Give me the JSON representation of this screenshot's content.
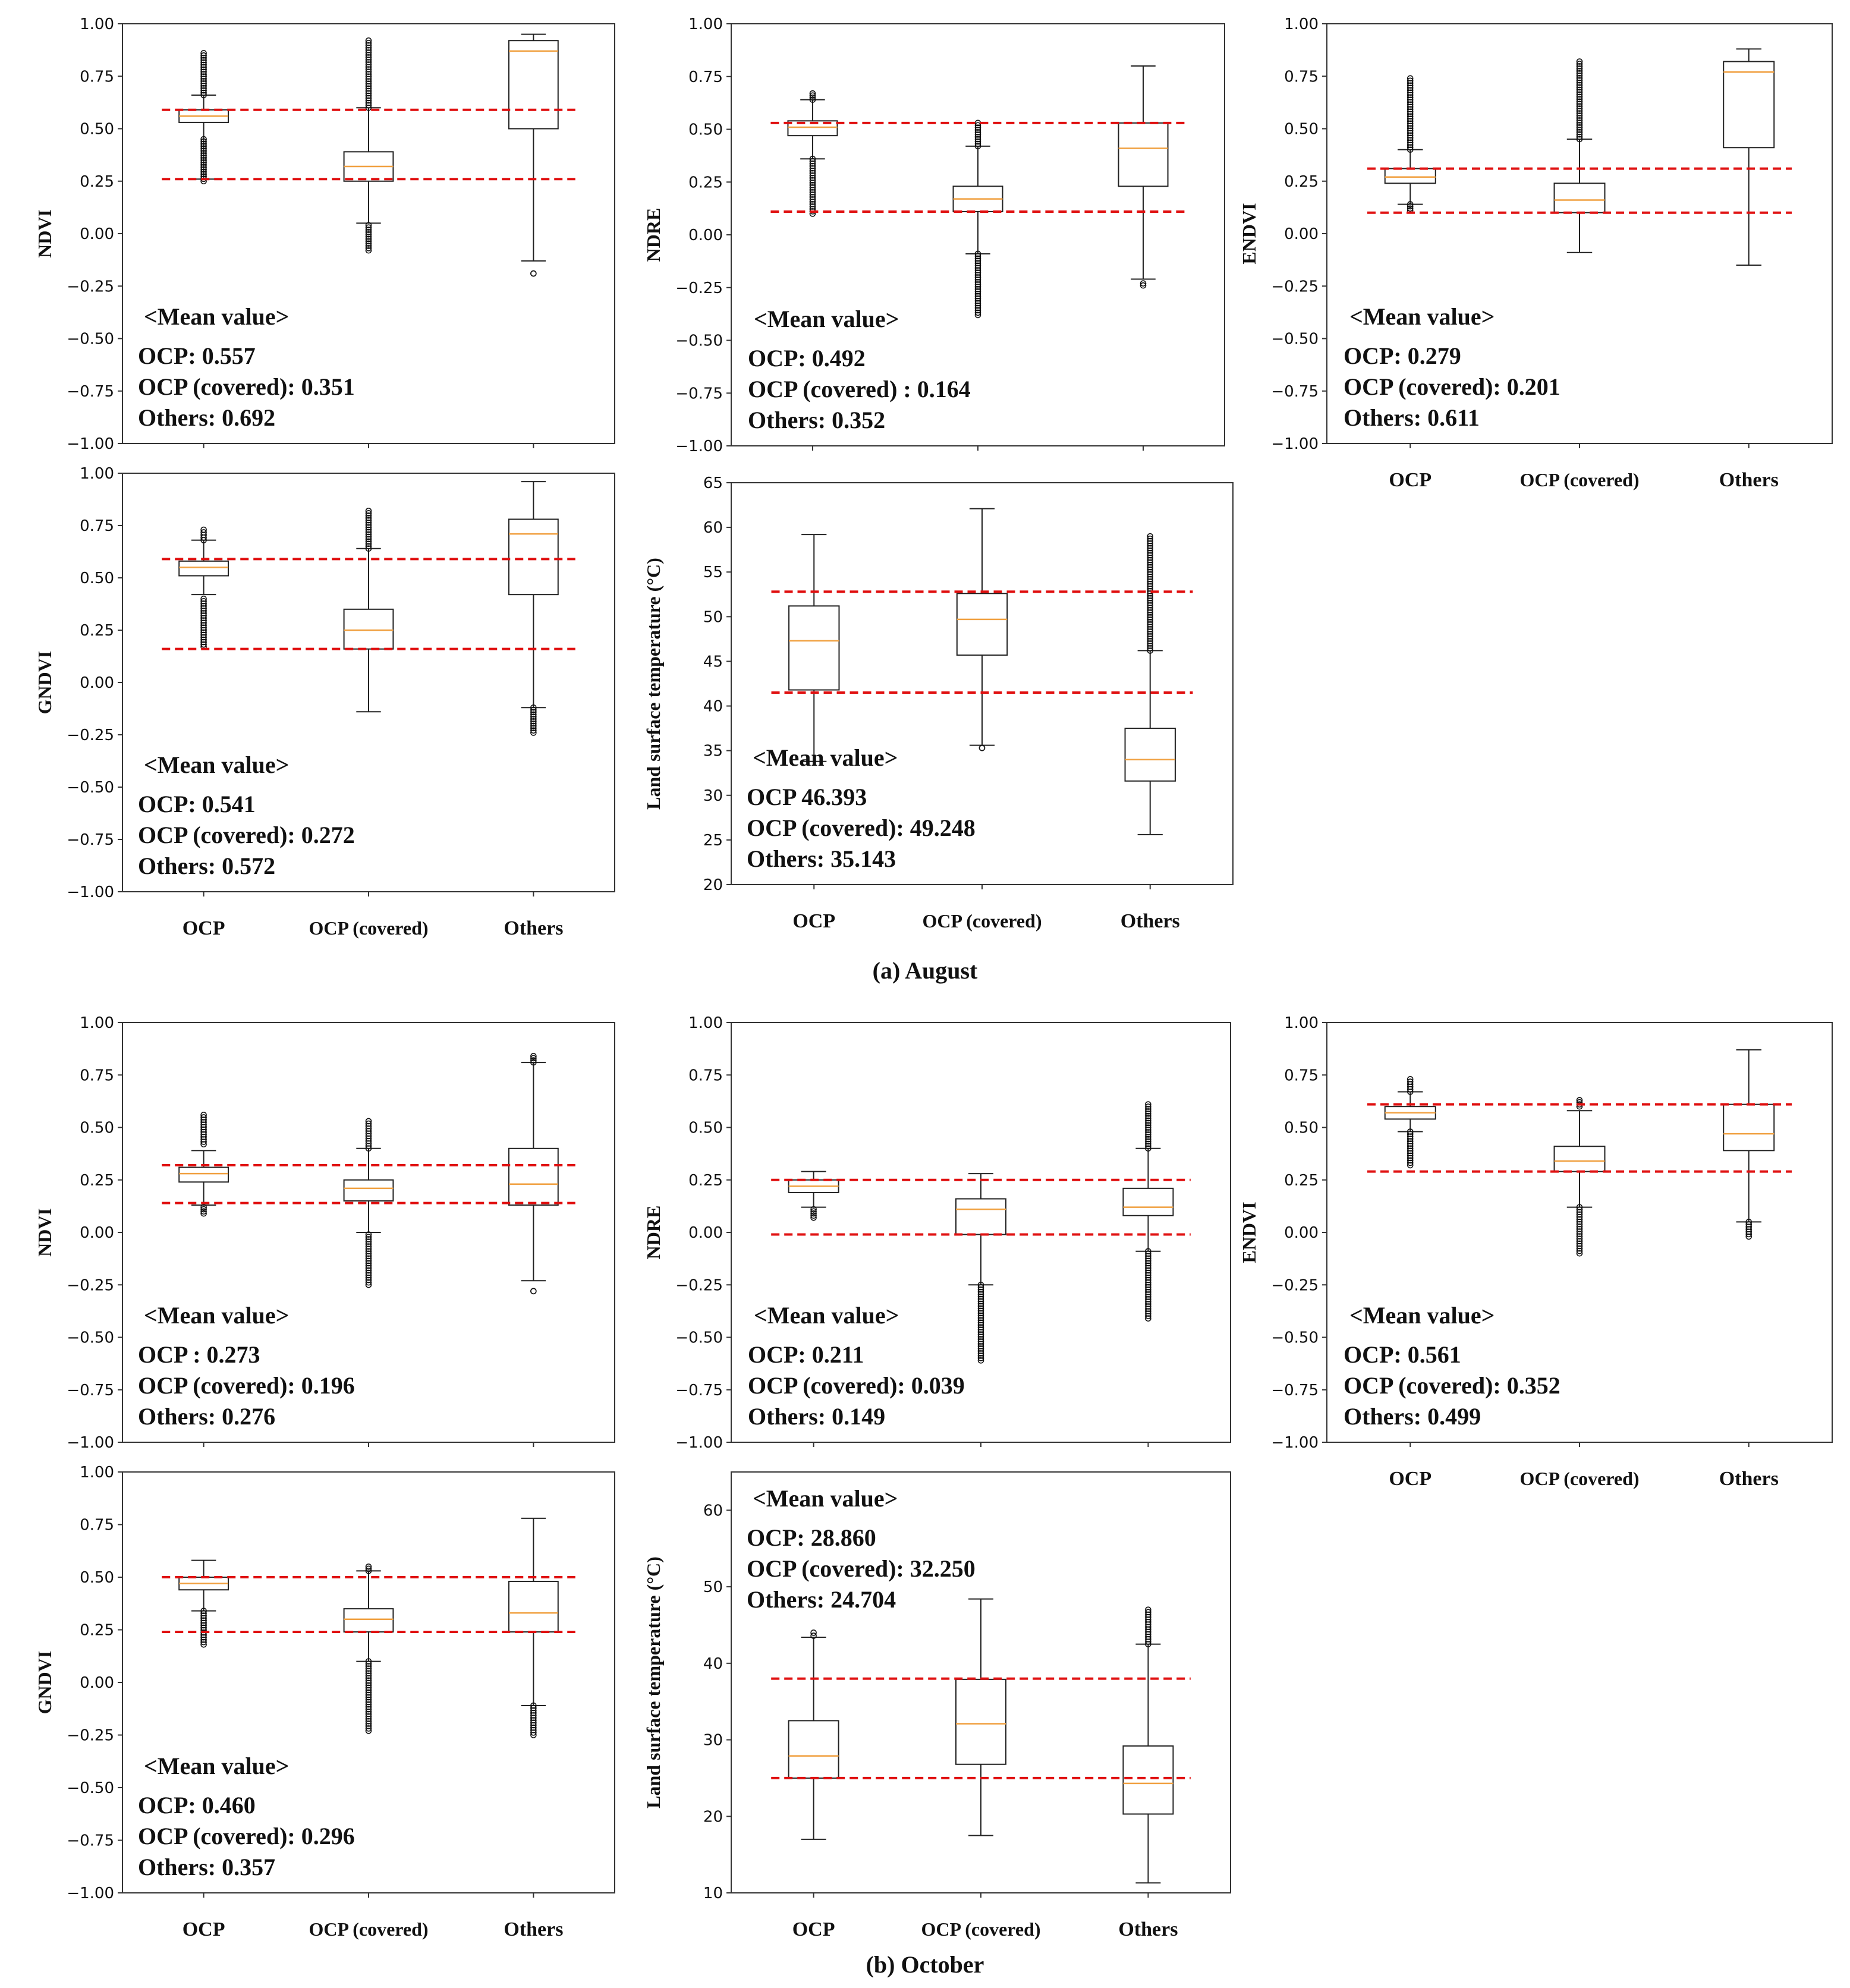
{
  "chart_data": [
    {
      "id": "aug-ndvi",
      "type": "box",
      "month": "August",
      "ylabel": "NDVI",
      "ylim": [
        -1.0,
        1.0
      ],
      "yticks": [
        "1.00",
        "0.75",
        "0.50",
        "0.25",
        "0.00",
        "−0.25",
        "−0.50",
        "−0.75",
        "−1.00"
      ],
      "categories": [
        "OCP",
        "OCP (covered)",
        "Others"
      ],
      "show_category_labels": false,
      "boxes": [
        {
          "wlo": 0.26,
          "q1": 0.53,
          "med": 0.56,
          "q3": 0.59,
          "whi": 0.66,
          "fliers": [
            [
              0.66,
              0.86
            ],
            [
              0.25,
              0.45
            ]
          ]
        },
        {
          "wlo": 0.05,
          "q1": 0.25,
          "med": 0.32,
          "q3": 0.39,
          "whi": 0.6,
          "fliers": [
            [
              0.6,
              0.92
            ],
            [
              -0.08,
              0.04
            ]
          ]
        },
        {
          "wlo": -0.13,
          "q1": 0.5,
          "med": 0.87,
          "q3": 0.92,
          "whi": 0.95,
          "fliers": [
            [
              -0.19,
              -0.19
            ]
          ]
        }
      ],
      "ref_lines": [
        0.59,
        0.26
      ],
      "annotation": {
        "title": "<Mean value>",
        "lines": [
          "OCP: 0.557",
          "OCP (covered): 0.351",
          "Others: 0.692"
        ]
      }
    },
    {
      "id": "aug-ndre",
      "type": "box",
      "month": "August",
      "ylabel": "NDRE",
      "ylim": [
        -1.0,
        1.0
      ],
      "yticks": [
        "1.00",
        "0.75",
        "0.50",
        "0.25",
        "0.00",
        "−0.25",
        "−0.50",
        "−0.75",
        "−1.00"
      ],
      "categories": [
        "OCP",
        "OCP (covered)",
        "Others"
      ],
      "show_category_labels": false,
      "boxes": [
        {
          "wlo": 0.36,
          "q1": 0.47,
          "med": 0.51,
          "q3": 0.54,
          "whi": 0.64,
          "fliers": [
            [
              0.64,
              0.67
            ],
            [
              0.1,
              0.36
            ]
          ]
        },
        {
          "wlo": -0.09,
          "q1": 0.11,
          "med": 0.17,
          "q3": 0.23,
          "whi": 0.42,
          "fliers": [
            [
              0.42,
              0.53
            ],
            [
              -0.38,
              -0.09
            ]
          ]
        },
        {
          "wlo": -0.21,
          "q1": 0.23,
          "med": 0.41,
          "q3": 0.53,
          "whi": 0.8,
          "fliers": [
            [
              -0.24,
              -0.23
            ]
          ]
        }
      ],
      "ref_lines": [
        0.53,
        0.11
      ],
      "annotation": {
        "title": "<Mean value>",
        "lines": [
          "OCP: 0.492",
          "OCP (covered) : 0.164",
          "Others: 0.352"
        ]
      }
    },
    {
      "id": "aug-endvi",
      "type": "box",
      "month": "August",
      "ylabel": "ENDVI",
      "ylim": [
        -1.0,
        1.0
      ],
      "yticks": [
        "1.00",
        "0.75",
        "0.50",
        "0.25",
        "0.00",
        "−0.25",
        "−0.50",
        "−0.75",
        "−1.00"
      ],
      "categories": [
        "OCP",
        "OCP (covered)",
        "Others"
      ],
      "show_category_labels": true,
      "boxes": [
        {
          "wlo": 0.14,
          "q1": 0.24,
          "med": 0.27,
          "q3": 0.31,
          "whi": 0.4,
          "fliers": [
            [
              0.4,
              0.74
            ],
            [
              0.11,
              0.14
            ]
          ]
        },
        {
          "wlo": -0.09,
          "q1": 0.1,
          "med": 0.16,
          "q3": 0.24,
          "whi": 0.45,
          "fliers": [
            [
              0.45,
              0.82
            ]
          ]
        },
        {
          "wlo": -0.15,
          "q1": 0.41,
          "med": 0.77,
          "q3": 0.82,
          "whi": 0.88,
          "fliers": []
        }
      ],
      "ref_lines": [
        0.31,
        0.1
      ],
      "annotation": {
        "title": "<Mean value>",
        "lines": [
          "OCP: 0.279",
          "OCP (covered): 0.201",
          "Others: 0.611"
        ]
      }
    },
    {
      "id": "aug-gndvi",
      "type": "box",
      "month": "August",
      "ylabel": "GNDVI",
      "ylim": [
        -1.0,
        1.0
      ],
      "yticks": [
        "1.00",
        "0.75",
        "0.50",
        "0.25",
        "0.00",
        "−0.25",
        "−0.50",
        "−0.75",
        "−1.00"
      ],
      "categories": [
        "OCP",
        "OCP (covered)",
        "Others"
      ],
      "show_category_labels": true,
      "boxes": [
        {
          "wlo": 0.42,
          "q1": 0.51,
          "med": 0.55,
          "q3": 0.58,
          "whi": 0.68,
          "fliers": [
            [
              0.68,
              0.73
            ],
            [
              0.17,
              0.4
            ]
          ]
        },
        {
          "wlo": -0.14,
          "q1": 0.16,
          "med": 0.25,
          "q3": 0.35,
          "whi": 0.64,
          "fliers": [
            [
              0.64,
              0.82
            ]
          ]
        },
        {
          "wlo": -0.12,
          "q1": 0.42,
          "med": 0.71,
          "q3": 0.78,
          "whi": 0.96,
          "fliers": [
            [
              -0.24,
              -0.12
            ]
          ]
        }
      ],
      "ref_lines": [
        0.59,
        0.16
      ],
      "annotation": {
        "title": "<Mean value>",
        "lines": [
          "OCP: 0.541",
          "OCP (covered): 0.272",
          "Others: 0.572"
        ]
      }
    },
    {
      "id": "aug-lst",
      "type": "box",
      "month": "August",
      "ylabel": "Land surface temperature (°C)",
      "ylim": [
        20,
        65
      ],
      "yticks": [
        "65",
        "60",
        "55",
        "50",
        "45",
        "40",
        "35",
        "30",
        "25",
        "20"
      ],
      "categories": [
        "OCP",
        "OCP (covered)",
        "Others"
      ],
      "show_category_labels": true,
      "boxes": [
        {
          "wlo": 33.8,
          "q1": 41.8,
          "med": 47.3,
          "q3": 51.2,
          "whi": 59.2,
          "fliers": []
        },
        {
          "wlo": 35.6,
          "q1": 45.7,
          "med": 49.7,
          "q3": 52.6,
          "whi": 62.1,
          "fliers": [
            [
              35.3,
              35.3
            ]
          ]
        },
        {
          "wlo": 25.6,
          "q1": 31.6,
          "med": 34.0,
          "q3": 37.5,
          "whi": 46.2,
          "fliers": [
            [
              46.2,
              59.0
            ]
          ]
        }
      ],
      "ref_lines": [
        52.8,
        41.5
      ],
      "annotation": {
        "title": "<Mean value>",
        "lines": [
          "OCP  46.393",
          "OCP (covered): 49.248",
          "Others: 35.143"
        ]
      }
    },
    {
      "id": "oct-ndvi",
      "type": "box",
      "month": "October",
      "ylabel": "NDVI",
      "ylim": [
        -1.0,
        1.0
      ],
      "yticks": [
        "1.00",
        "0.75",
        "0.50",
        "0.25",
        "0.00",
        "−0.25",
        "−0.50",
        "−0.75",
        "−1.00"
      ],
      "categories": [
        "OCP",
        "OCP (covered)",
        "Others"
      ],
      "show_category_labels": false,
      "boxes": [
        {
          "wlo": 0.13,
          "q1": 0.24,
          "med": 0.28,
          "q3": 0.31,
          "whi": 0.39,
          "fliers": [
            [
              0.42,
              0.56
            ],
            [
              0.09,
              0.12
            ]
          ]
        },
        {
          "wlo": 0.0,
          "q1": 0.15,
          "med": 0.21,
          "q3": 0.25,
          "whi": 0.4,
          "fliers": [
            [
              0.4,
              0.53
            ],
            [
              -0.25,
              -0.01
            ]
          ]
        },
        {
          "wlo": -0.23,
          "q1": 0.13,
          "med": 0.23,
          "q3": 0.4,
          "whi": 0.81,
          "fliers": [
            [
              0.81,
              0.84
            ],
            [
              -0.28,
              -0.28
            ]
          ]
        }
      ],
      "ref_lines": [
        0.32,
        0.14
      ],
      "annotation": {
        "title": "<Mean value>",
        "lines": [
          "OCP : 0.273",
          "OCP (covered): 0.196",
          "Others: 0.276"
        ]
      }
    },
    {
      "id": "oct-ndre",
      "type": "box",
      "month": "October",
      "ylabel": "NDRE",
      "ylim": [
        -1.0,
        1.0
      ],
      "yticks": [
        "1.00",
        "0.75",
        "0.50",
        "0.25",
        "0.00",
        "−0.25",
        "−0.50",
        "−0.75",
        "−1.00"
      ],
      "categories": [
        "OCP",
        "OCP (covered)",
        "Others"
      ],
      "show_category_labels": false,
      "boxes": [
        {
          "wlo": 0.12,
          "q1": 0.19,
          "med": 0.22,
          "q3": 0.25,
          "whi": 0.29,
          "fliers": [
            [
              0.07,
              0.11
            ]
          ]
        },
        {
          "wlo": -0.25,
          "q1": -0.01,
          "med": 0.11,
          "q3": 0.16,
          "whi": 0.28,
          "fliers": [
            [
              -0.61,
              -0.25
            ]
          ]
        },
        {
          "wlo": -0.09,
          "q1": 0.08,
          "med": 0.12,
          "q3": 0.21,
          "whi": 0.4,
          "fliers": [
            [
              0.4,
              0.61
            ],
            [
              -0.41,
              -0.09
            ]
          ]
        }
      ],
      "ref_lines": [
        0.25,
        -0.01
      ],
      "annotation": {
        "title": "<Mean value>",
        "lines": [
          "OCP: 0.211",
          "OCP (covered): 0.039",
          "Others: 0.149"
        ]
      }
    },
    {
      "id": "oct-endvi",
      "type": "box",
      "month": "October",
      "ylabel": "ENDVI",
      "ylim": [
        -1.0,
        1.0
      ],
      "yticks": [
        "1.00",
        "0.75",
        "0.50",
        "0.25",
        "0.00",
        "−0.25",
        "−0.50",
        "−0.75",
        "−1.00"
      ],
      "categories": [
        "OCP",
        "OCP (covered)",
        "Others"
      ],
      "show_category_labels": true,
      "boxes": [
        {
          "wlo": 0.48,
          "q1": 0.54,
          "med": 0.57,
          "q3": 0.6,
          "whi": 0.67,
          "fliers": [
            [
              0.67,
              0.73
            ],
            [
              0.32,
              0.48
            ]
          ]
        },
        {
          "wlo": 0.12,
          "q1": 0.29,
          "med": 0.34,
          "q3": 0.41,
          "whi": 0.58,
          "fliers": [
            [
              0.6,
              0.63
            ],
            [
              -0.1,
              0.12
            ]
          ]
        },
        {
          "wlo": 0.05,
          "q1": 0.39,
          "med": 0.47,
          "q3": 0.61,
          "whi": 0.87,
          "fliers": [
            [
              -0.02,
              0.05
            ]
          ]
        }
      ],
      "ref_lines": [
        0.61,
        0.29
      ],
      "annotation": {
        "title": "<Mean value>",
        "lines": [
          "OCP: 0.561",
          "OCP (covered): 0.352",
          "Others: 0.499"
        ]
      }
    },
    {
      "id": "oct-gndvi",
      "type": "box",
      "month": "October",
      "ylabel": "GNDVI",
      "ylim": [
        -1.0,
        1.0
      ],
      "yticks": [
        "1.00",
        "0.75",
        "0.50",
        "0.25",
        "0.00",
        "−0.25",
        "−0.50",
        "−0.75",
        "−1.00"
      ],
      "categories": [
        "OCP",
        "OCP (covered)",
        "Others"
      ],
      "show_category_labels": true,
      "boxes": [
        {
          "wlo": 0.34,
          "q1": 0.44,
          "med": 0.47,
          "q3": 0.5,
          "whi": 0.58,
          "fliers": [
            [
              0.18,
              0.34
            ]
          ]
        },
        {
          "wlo": 0.1,
          "q1": 0.24,
          "med": 0.3,
          "q3": 0.35,
          "whi": 0.53,
          "fliers": [
            [
              0.53,
              0.55
            ],
            [
              -0.23,
              0.1
            ]
          ]
        },
        {
          "wlo": -0.11,
          "q1": 0.24,
          "med": 0.33,
          "q3": 0.48,
          "whi": 0.78,
          "fliers": [
            [
              -0.25,
              -0.11
            ]
          ]
        }
      ],
      "ref_lines": [
        0.5,
        0.24
      ],
      "annotation": {
        "title": "<Mean value>",
        "lines": [
          "OCP: 0.460",
          "OCP (covered): 0.296",
          "Others: 0.357"
        ]
      }
    },
    {
      "id": "oct-lst",
      "type": "box",
      "month": "October",
      "ylabel": "Land surface temperature (°C)",
      "ylim": [
        10,
        65
      ],
      "yticks": [
        "60",
        "50",
        "40",
        "30",
        "20",
        "10"
      ],
      "categories": [
        "OCP",
        "OCP (covered)",
        "Others"
      ],
      "show_category_labels": true,
      "boxes": [
        {
          "wlo": 17.0,
          "q1": 25.0,
          "med": 27.9,
          "q3": 32.5,
          "whi": 43.4,
          "fliers": [
            [
              43.6,
              44.0
            ]
          ]
        },
        {
          "wlo": 17.5,
          "q1": 26.8,
          "med": 32.1,
          "q3": 37.9,
          "whi": 48.4,
          "fliers": []
        },
        {
          "wlo": 11.3,
          "q1": 20.3,
          "med": 24.3,
          "q3": 29.2,
          "whi": 42.5,
          "fliers": [
            [
              42.5,
              47.0
            ]
          ]
        }
      ],
      "ref_lines": [
        38.0,
        25.0
      ],
      "annotation": {
        "title": "<Mean value>",
        "lines": [
          "OCP: 28.860",
          "OCP (covered): 32.250",
          "Others: 24.704"
        ]
      }
    }
  ],
  "captions": {
    "august": "(a) August",
    "october": "(b) October"
  },
  "colors": {
    "box": "#222222",
    "median": "#f0a040",
    "ref_line": "#e01010",
    "flier": "#111111"
  }
}
